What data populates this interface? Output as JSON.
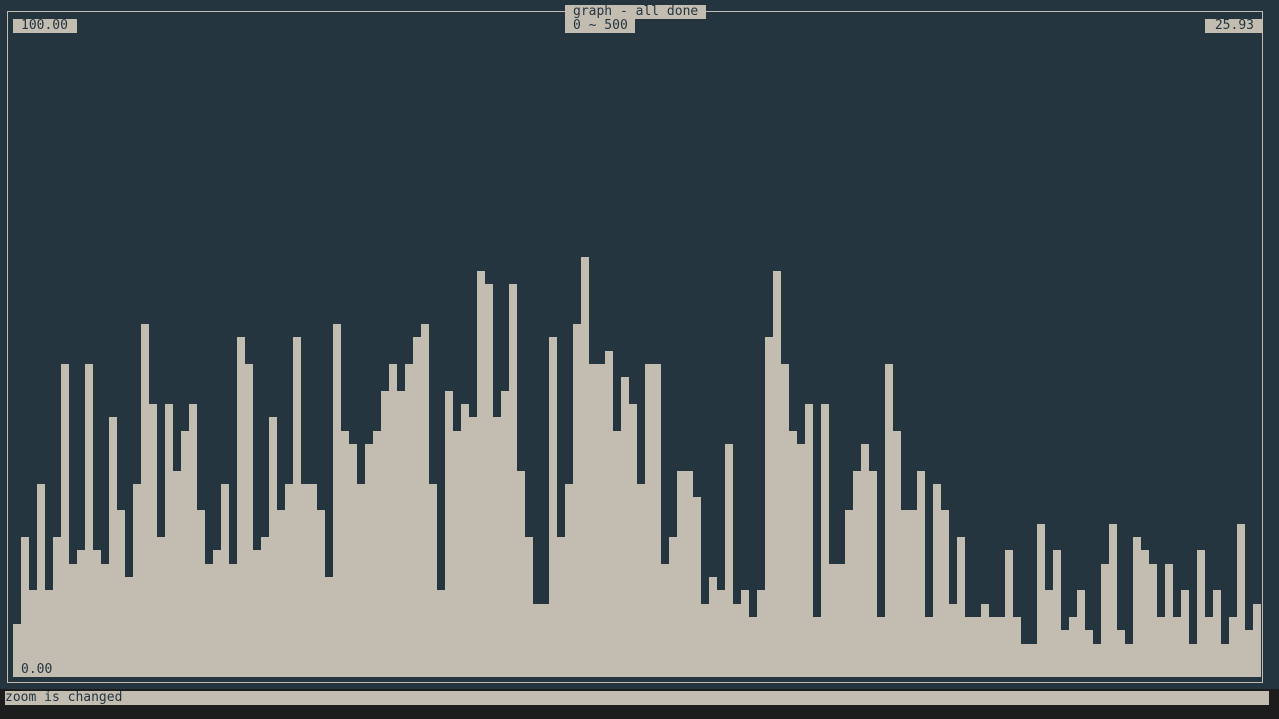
{
  "window": {
    "title": "graph - all done",
    "range_label": "0 ~ 500",
    "max_label": "100.00",
    "current_label": "25.93",
    "min_label": "0.00"
  },
  "status_bar": {
    "message": "zoom is changed"
  },
  "colors": {
    "background": "#253540",
    "bar": "#c3bcb0",
    "outer": "#1d1d1d"
  },
  "chart_data": {
    "type": "bar",
    "ylim": [
      0,
      100
    ],
    "values": [
      8,
      21,
      13,
      29,
      13,
      21,
      47,
      17,
      19,
      47,
      19,
      17,
      39,
      25,
      15,
      29,
      53,
      41,
      21,
      41,
      31,
      37,
      41,
      25,
      17,
      19,
      29,
      17,
      51,
      47,
      19,
      21,
      39,
      25,
      29,
      51,
      29,
      29,
      25,
      15,
      53,
      37,
      35,
      29,
      35,
      37,
      43,
      47,
      43,
      47,
      51,
      53,
      29,
      13,
      43,
      37,
      41,
      39,
      61,
      59,
      39,
      43,
      59,
      31,
      21,
      11,
      11,
      51,
      21,
      29,
      53,
      63,
      47,
      47,
      49,
      37,
      45,
      41,
      29,
      47,
      47,
      17,
      21,
      31,
      31,
      27,
      11,
      15,
      13,
      35,
      11,
      13,
      9,
      13,
      51,
      61,
      47,
      37,
      35,
      41,
      9,
      41,
      17,
      17,
      25,
      31,
      35,
      31,
      9,
      47,
      37,
      25,
      25,
      31,
      9,
      29,
      25,
      11,
      21,
      9,
      9,
      11,
      9,
      9,
      19,
      9,
      5,
      5,
      23,
      13,
      19,
      7,
      9,
      13,
      7,
      5,
      17,
      23,
      7,
      5,
      21,
      19,
      17,
      9,
      17,
      9,
      13,
      5,
      19,
      9,
      13,
      5,
      9,
      23,
      7,
      11,
      15
    ]
  }
}
